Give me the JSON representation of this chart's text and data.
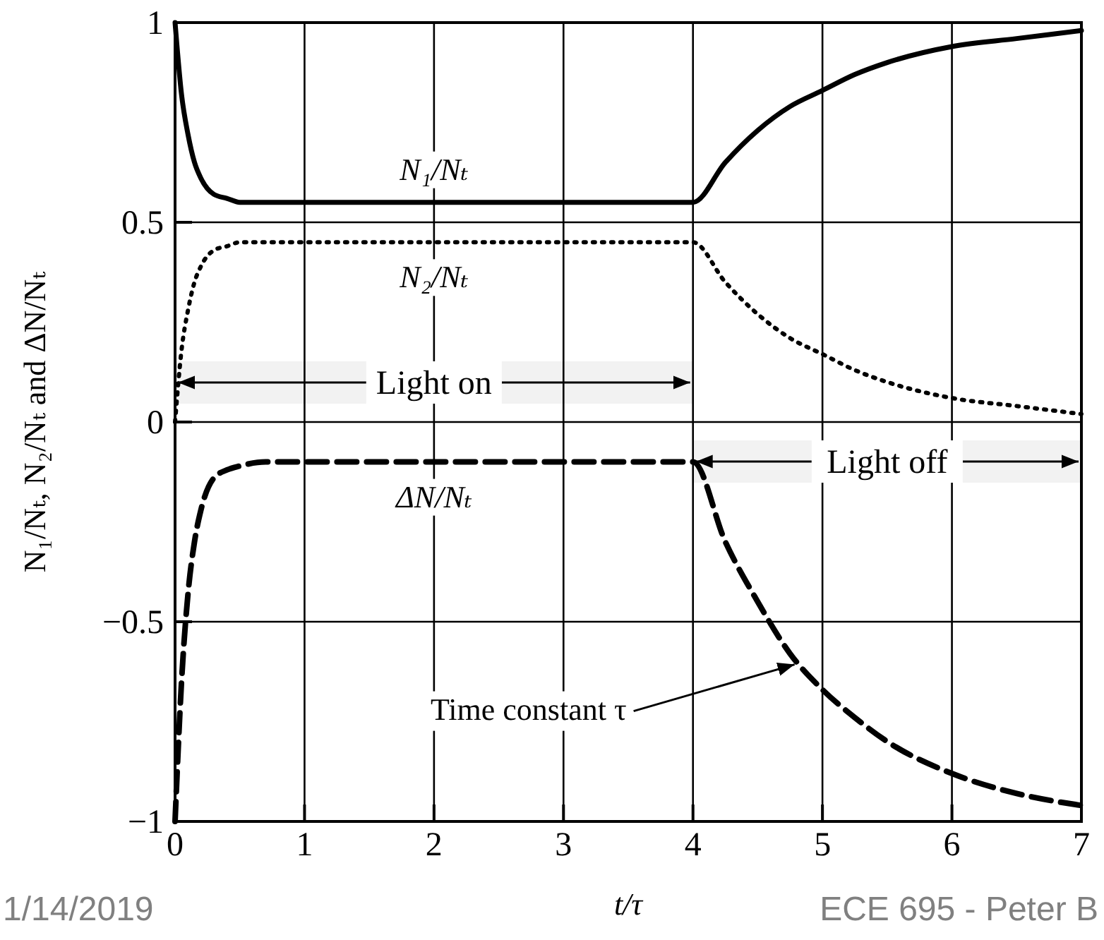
{
  "chart_data": {
    "type": "line",
    "xlabel": "t/τ",
    "ylabel": "N₁/Nₜ, N₂/Nₜ and  ΔN/Nₜ",
    "x": [
      0,
      0.05,
      0.1,
      0.15,
      0.2,
      0.3,
      0.4,
      0.5,
      0.7,
      1,
      2,
      3,
      4,
      4.25,
      4.5,
      4.75,
      5,
      5.25,
      5.5,
      6,
      6.5,
      7
    ],
    "series": [
      {
        "name": "N₁/Nₜ",
        "color": "#000000",
        "line_style": "solid",
        "values": [
          1,
          0.82,
          0.72,
          0.65,
          0.61,
          0.57,
          0.56,
          0.55,
          0.55,
          0.55,
          0.55,
          0.55,
          0.55,
          0.65,
          0.73,
          0.79,
          0.83,
          0.87,
          0.9,
          0.94,
          0.96,
          0.98
        ]
      },
      {
        "name": "N₂/Nₜ",
        "color": "#000000",
        "line_style": "dotted",
        "values": [
          0,
          0.18,
          0.28,
          0.35,
          0.39,
          0.43,
          0.44,
          0.45,
          0.45,
          0.45,
          0.45,
          0.45,
          0.45,
          0.35,
          0.27,
          0.21,
          0.17,
          0.13,
          0.1,
          0.06,
          0.04,
          0.02
        ]
      },
      {
        "name": "ΔN/Nₜ",
        "color": "#000000",
        "line_style": "dashed",
        "values": [
          -1,
          -0.65,
          -0.43,
          -0.3,
          -0.22,
          -0.14,
          -0.12,
          -0.11,
          -0.1,
          -0.1,
          -0.1,
          -0.1,
          -0.1,
          -0.3,
          -0.45,
          -0.58,
          -0.67,
          -0.74,
          -0.8,
          -0.88,
          -0.93,
          -0.96
        ]
      }
    ],
    "xlim": [
      0,
      7
    ],
    "xticks": [
      0,
      1,
      2,
      3,
      4,
      5,
      6,
      7
    ],
    "ylim": [
      -1,
      1
    ],
    "yticks": [
      {
        "value": -1,
        "label": "−1"
      },
      {
        "value": -0.5,
        "label": "−0.5"
      },
      0,
      0.5,
      1
    ],
    "grid": true,
    "bands": [
      {
        "axis": "x",
        "from": 0,
        "to": 4,
        "label": "Light on"
      },
      {
        "axis": "x",
        "from": 4,
        "to": 7,
        "label": "Light off"
      }
    ],
    "annotations": [
      {
        "text": "Time constant τ",
        "x": 4.85,
        "y": -0.6
      },
      "1/14/2019",
      "ECE 695 - Peter B"
    ]
  }
}
